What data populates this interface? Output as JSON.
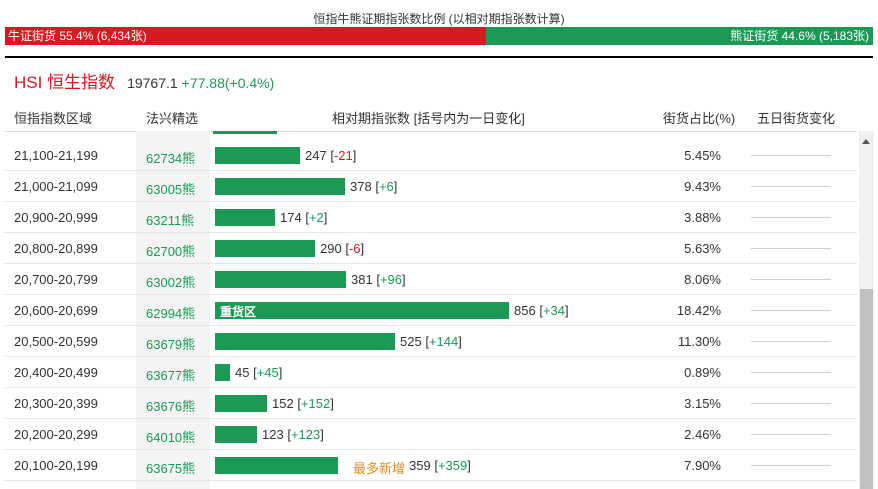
{
  "ratio": {
    "title": "恒指牛熊证期指张数比例 (以相对期指张数计算)",
    "bull_label": "牛证街货 55.4% (6,434张)",
    "bear_label": "熊证街货 44.6% (5,183张)",
    "bull_fraction": 0.554,
    "bull_color": "#d71920",
    "bear_color": "#1a9a55"
  },
  "index": {
    "name": "HSI 恒生指数",
    "value": "19767.1",
    "change": "+77.88(+0.4%)"
  },
  "headers": {
    "range": "恒指指数区域",
    "pick": "法兴精选",
    "contracts": "相对期指张数 [括号内为一日变化]",
    "share": "街货占比(%)",
    "five_day": "五日街货变化"
  },
  "bar_scale_max": 856,
  "rows": [
    {
      "range": "21,100-21,199",
      "code": "62734熊",
      "contracts": 247,
      "count": "247",
      "delta": "-21",
      "share": "5.45%"
    },
    {
      "range": "21,000-21,099",
      "code": "63005熊",
      "contracts": 378,
      "count": "378",
      "delta": "+6",
      "share": "9.43%"
    },
    {
      "range": "20,900-20,999",
      "code": "63211熊",
      "contracts": 174,
      "count": "174",
      "delta": "+2",
      "share": "3.88%"
    },
    {
      "range": "20,800-20,899",
      "code": "62700熊",
      "contracts": 290,
      "count": "290",
      "delta": "-6",
      "share": "5.63%"
    },
    {
      "range": "20,700-20,799",
      "code": "63002熊",
      "contracts": 381,
      "count": "381",
      "delta": "+96",
      "share": "8.06%"
    },
    {
      "range": "20,600-20,699",
      "code": "62994熊",
      "contracts": 856,
      "count": "856",
      "delta": "+34",
      "share": "18.42%",
      "bar_label": "重货区"
    },
    {
      "range": "20,500-20,599",
      "code": "63679熊",
      "contracts": 525,
      "count": "525",
      "delta": "+144",
      "share": "11.30%"
    },
    {
      "range": "20,400-20,499",
      "code": "63677熊",
      "contracts": 45,
      "count": "45",
      "delta": "+45",
      "share": "0.89%"
    },
    {
      "range": "20,300-20,399",
      "code": "63676熊",
      "contracts": 152,
      "count": "152",
      "delta": "+152",
      "share": "3.15%"
    },
    {
      "range": "20,200-20,299",
      "code": "64010熊",
      "contracts": 123,
      "count": "123",
      "delta": "+123",
      "share": "2.46%"
    },
    {
      "range": "20,100-20,199",
      "code": "63675熊",
      "contracts": 359,
      "count": "359",
      "delta": "+359",
      "share": "7.90%",
      "tag": "最多新增"
    }
  ]
}
